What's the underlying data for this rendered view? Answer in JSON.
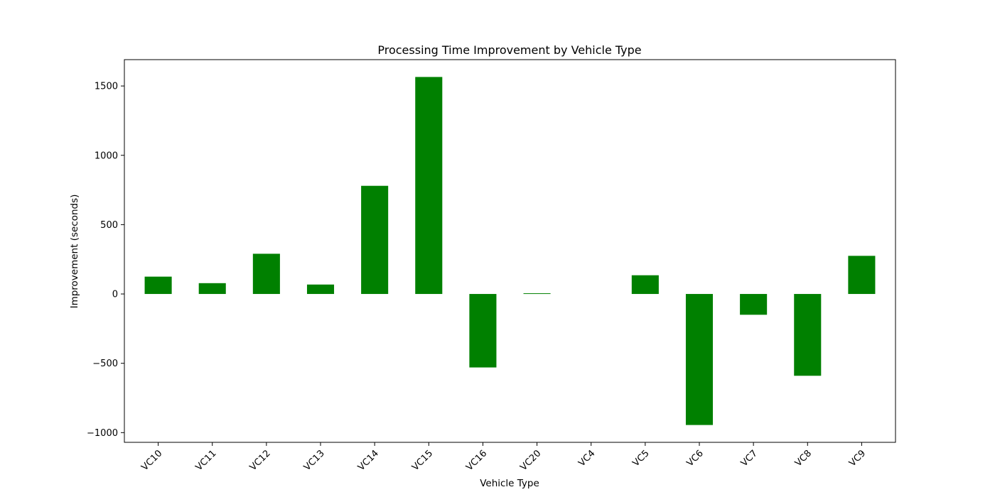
{
  "chart_data": {
    "type": "bar",
    "title": "Processing Time Improvement by Vehicle Type",
    "xlabel": "Vehicle Type",
    "ylabel": "Improvement (seconds)",
    "categories": [
      "VC10",
      "VC11",
      "VC12",
      "VC13",
      "VC14",
      "VC15",
      "VC16",
      "VC20",
      "VC4",
      "VC5",
      "VC6",
      "VC7",
      "VC8",
      "VC9"
    ],
    "values": [
      125,
      78,
      290,
      68,
      780,
      1565,
      -530,
      5,
      0,
      135,
      -945,
      -150,
      -590,
      275
    ],
    "ylim": [
      -1070,
      1690
    ],
    "yticks": [
      -1000,
      -500,
      0,
      500,
      1000,
      1500
    ],
    "ytick_labels": [
      "−1000",
      "−500",
      "0",
      "500",
      "1000",
      "1500"
    ],
    "bar_color": "#008000",
    "grid": false,
    "legend": "none"
  }
}
